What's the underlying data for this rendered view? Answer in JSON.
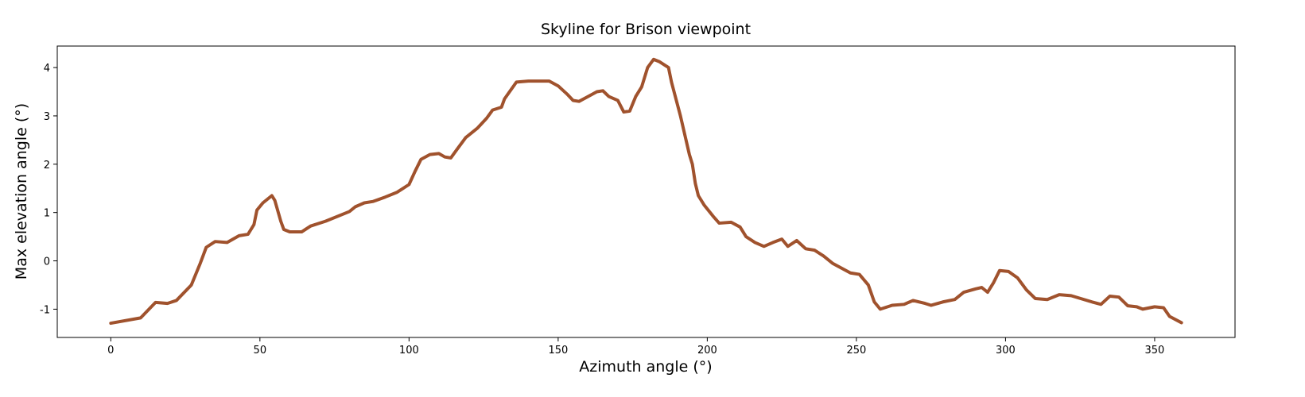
{
  "chart_data": {
    "type": "line",
    "title": "Skyline for Brison viewpoint",
    "x_label": "Azimuth angle (°)",
    "y_label": "Max elevation angle (°)",
    "x": [
      0,
      10,
      15,
      19,
      22,
      27,
      30,
      32,
      35,
      39,
      43,
      46,
      48,
      49,
      51,
      54,
      55,
      57,
      58,
      60,
      64,
      67,
      72,
      80,
      82,
      85,
      88,
      92,
      96,
      100,
      102,
      104,
      107,
      110,
      112,
      114,
      116,
      119,
      123,
      126,
      128,
      131,
      132,
      136,
      140,
      147,
      150,
      153,
      155,
      157,
      160,
      163,
      165,
      167,
      170,
      172,
      174,
      176,
      178,
      180,
      182,
      184,
      187,
      188,
      191,
      194,
      195,
      196,
      197,
      199,
      202,
      204,
      208,
      211,
      213,
      216,
      219,
      222,
      225,
      227,
      230,
      233,
      236,
      239,
      242,
      248,
      251,
      254,
      256,
      258,
      262,
      266,
      269,
      273,
      275,
      279,
      283,
      286,
      290,
      292,
      294,
      296,
      298,
      301,
      304,
      307,
      310,
      314,
      318,
      322,
      329,
      332,
      335,
      338,
      341,
      344,
      346,
      350,
      353,
      355,
      359
    ],
    "series": [
      {
        "name": "Skyline",
        "color": "#a0522d",
        "values": [
          -1.29,
          -1.18,
          -0.86,
          -0.88,
          -0.82,
          -0.5,
          -0.05,
          0.28,
          0.4,
          0.38,
          0.52,
          0.55,
          0.75,
          1.05,
          1.2,
          1.35,
          1.25,
          0.82,
          0.65,
          0.6,
          0.6,
          0.72,
          0.82,
          1.02,
          1.12,
          1.2,
          1.23,
          1.32,
          1.42,
          1.58,
          1.85,
          2.1,
          2.2,
          2.22,
          2.15,
          2.13,
          2.3,
          2.55,
          2.75,
          2.95,
          3.12,
          3.18,
          3.35,
          3.7,
          3.72,
          3.72,
          3.62,
          3.45,
          3.32,
          3.3,
          3.4,
          3.5,
          3.52,
          3.4,
          3.32,
          3.08,
          3.1,
          3.4,
          3.6,
          4.0,
          4.17,
          4.12,
          4.0,
          3.7,
          3.0,
          2.2,
          2.0,
          1.6,
          1.35,
          1.15,
          0.92,
          0.78,
          0.8,
          0.7,
          0.5,
          0.38,
          0.3,
          0.38,
          0.45,
          0.3,
          0.42,
          0.25,
          0.22,
          0.1,
          -0.05,
          -0.25,
          -0.28,
          -0.5,
          -0.85,
          -1.0,
          -0.92,
          -0.9,
          -0.82,
          -0.88,
          -0.92,
          -0.85,
          -0.8,
          -0.65,
          -0.58,
          -0.55,
          -0.65,
          -0.45,
          -0.2,
          -0.22,
          -0.35,
          -0.6,
          -0.78,
          -0.8,
          -0.7,
          -0.72,
          -0.85,
          -0.9,
          -0.73,
          -0.75,
          -0.93,
          -0.95,
          -1.0,
          -0.95,
          -0.97,
          -1.15,
          -1.28
        ]
      }
    ],
    "xlim": [
      -17.95,
      376.95
    ],
    "xticks": [
      0,
      50,
      100,
      150,
      200,
      250,
      300,
      350
    ],
    "ylim": [
      -1.585,
      4.445
    ],
    "yticks": [
      -1,
      0,
      1,
      2,
      3,
      4
    ]
  }
}
